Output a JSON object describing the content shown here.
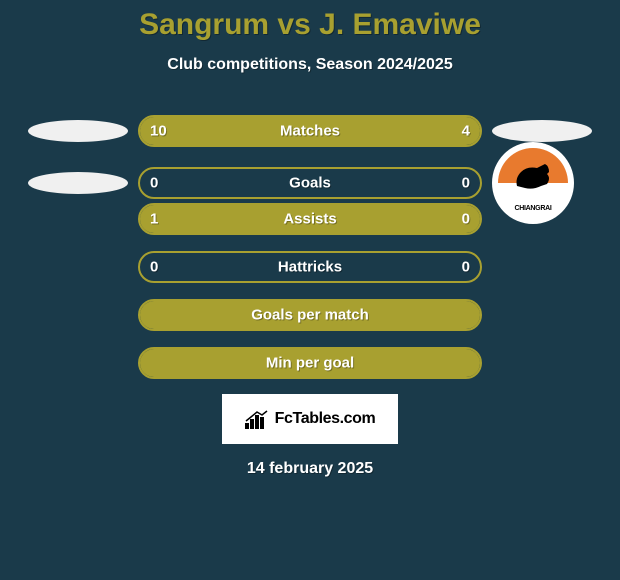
{
  "title": "Sangrum vs J. Emaviwe",
  "subtitle": "Club competitions, Season 2024/2025",
  "colors": {
    "background": "#1a3a4a",
    "accent": "#a8a030",
    "text": "#ffffff",
    "oval": "#f0f0f0",
    "logo_bg": "#ffffff",
    "badge_orange": "#e87a2e"
  },
  "bars": [
    {
      "label": "Matches",
      "left_val": "10",
      "right_val": "4",
      "left_pct": 71.4,
      "right_pct": 28.6,
      "left_side": "oval",
      "right_side": "oval"
    },
    {
      "label": "Goals",
      "left_val": "0",
      "right_val": "0",
      "left_pct": 0,
      "right_pct": 0,
      "left_side": "oval",
      "right_side": "badge"
    },
    {
      "label": "Assists",
      "left_val": "1",
      "right_val": "0",
      "left_pct": 100,
      "right_pct": 0,
      "left_side": "",
      "right_side": ""
    },
    {
      "label": "Hattricks",
      "left_val": "0",
      "right_val": "0",
      "left_pct": 0,
      "right_pct": 0,
      "left_side": "",
      "right_side": ""
    },
    {
      "label": "Goals per match",
      "left_val": "",
      "right_val": "",
      "left_pct": 100,
      "right_pct": 0,
      "left_side": "",
      "right_side": ""
    },
    {
      "label": "Min per goal",
      "left_val": "",
      "right_val": "",
      "left_pct": 100,
      "right_pct": 0,
      "left_side": "",
      "right_side": ""
    }
  ],
  "logo_text": "FcTables.com",
  "badge_text": "CHIANGRAI",
  "date": "14 february 2025"
}
